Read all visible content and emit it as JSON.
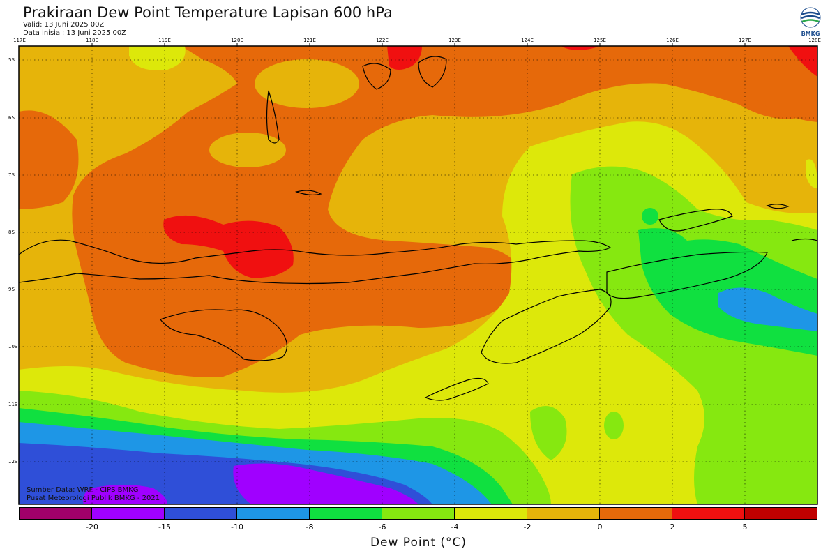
{
  "header": {
    "title": "Prakiraan Dew Point Temperature Lapisan 600 hPa",
    "valid": "Valid: 13 Juni 2025 00Z",
    "init": "Data inisial: 13 Juni 2025 00Z"
  },
  "logo": {
    "text": "BMKG"
  },
  "lon_labels": [
    "117E",
    "118E",
    "119E",
    "120E",
    "121E",
    "122E",
    "123E",
    "124E",
    "125E",
    "126E",
    "127E",
    "128E"
  ],
  "lat_labels": [
    "5S",
    "6S",
    "7S",
    "8S",
    "9S",
    "10S",
    "11S",
    "12S"
  ],
  "credits": {
    "source": "Sumber Data: WRF - CIPS BMKG",
    "center": "Pusat Meteorologi Publik BMKG - 2021"
  },
  "colorbar": {
    "colors": [
      "#a0006a",
      "#a000ff",
      "#2f4fd8",
      "#1e96e6",
      "#10e040",
      "#86e810",
      "#dde80a",
      "#e6b40a",
      "#e6690a",
      "#f01010",
      "#c00000"
    ],
    "ticks": [
      "-20",
      "-15",
      "-10",
      "-8",
      "-6",
      "-4",
      "-2",
      "0",
      "2",
      "5"
    ],
    "label": "Dew Point (°C)"
  }
}
